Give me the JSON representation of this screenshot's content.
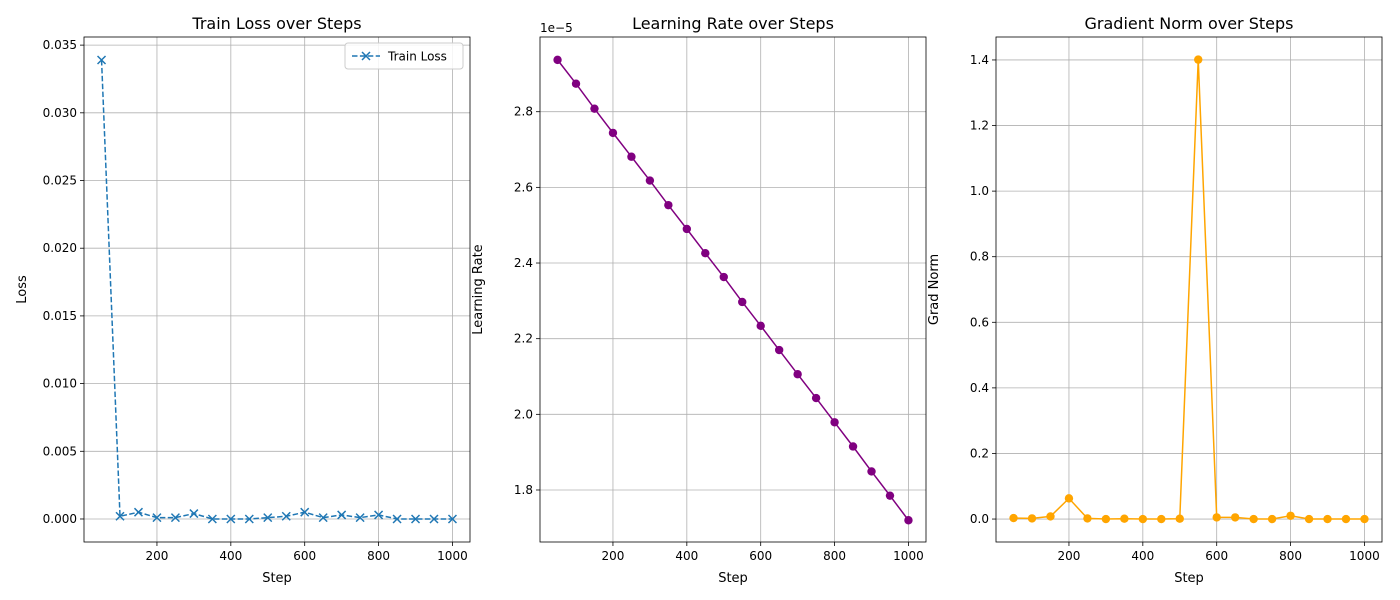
{
  "chart_data": [
    {
      "type": "line",
      "title": "Train Loss over Steps",
      "xlabel": "Step",
      "ylabel": "Loss",
      "xlim": [
        2.5,
        1047.5
      ],
      "ylim": [
        -0.0017,
        0.0356
      ],
      "x_ticks": [
        200,
        400,
        600,
        800,
        1000
      ],
      "y_ticks": [
        0.0,
        0.005,
        0.01,
        0.015,
        0.02,
        0.025,
        0.03,
        0.035
      ],
      "y_tick_labels": [
        "0.000",
        "0.005",
        "0.010",
        "0.015",
        "0.020",
        "0.025",
        "0.030",
        "0.035"
      ],
      "offset_text": "",
      "grid": true,
      "legend": {
        "position": "top-right",
        "entries": [
          "Train Loss"
        ]
      },
      "series": [
        {
          "name": "Train Loss",
          "color": "#1f77b4",
          "line_style": "dashed",
          "marker": "x",
          "x": [
            50,
            100,
            150,
            200,
            250,
            300,
            350,
            400,
            450,
            500,
            550,
            600,
            650,
            700,
            750,
            800,
            850,
            900,
            950,
            1000
          ],
          "y": [
            0.0339,
            0.0002,
            0.0005,
            0.0001,
            0.0001,
            0.0004,
            0.0,
            0.0,
            0.0,
            0.0001,
            0.0002,
            0.0005,
            0.0001,
            0.0003,
            0.0001,
            0.0003,
            0.0,
            0.0,
            0.0,
            0.0
          ]
        }
      ]
    },
    {
      "type": "line",
      "title": "Learning Rate over Steps",
      "xlabel": "Step",
      "ylabel": "Learning Rate",
      "xlim": [
        2.5,
        1047.5
      ],
      "ylim": [
        1.6625e-05,
        2.9975e-05
      ],
      "x_ticks": [
        200,
        400,
        600,
        800,
        1000
      ],
      "y_ticks": [
        1.8e-05,
        2e-05,
        2.2e-05,
        2.4e-05,
        2.6e-05,
        2.8e-05
      ],
      "y_tick_labels": [
        "1.8",
        "2.0",
        "2.2",
        "2.4",
        "2.6",
        "2.8"
      ],
      "offset_text": "1e−5",
      "grid": true,
      "series": [
        {
          "color": "#800080",
          "line_style": "solid",
          "marker": "o",
          "x": [
            50,
            100,
            150,
            200,
            250,
            300,
            350,
            400,
            450,
            500,
            550,
            600,
            650,
            700,
            750,
            800,
            850,
            900,
            950,
            1000
          ],
          "y": [
            2.937e-05,
            2.874e-05,
            2.808e-05,
            2.744e-05,
            2.681e-05,
            2.618e-05,
            2.553e-05,
            2.49e-05,
            2.426e-05,
            2.363e-05,
            2.297e-05,
            2.234e-05,
            2.17e-05,
            2.106e-05,
            2.043e-05,
            1.979e-05,
            1.915e-05,
            1.849e-05,
            1.785e-05,
            1.72e-05
          ]
        }
      ]
    },
    {
      "type": "line",
      "title": "Gradient Norm over Steps",
      "xlabel": "Step",
      "ylabel": "Grad Norm",
      "xlim": [
        2.5,
        1047.5
      ],
      "ylim": [
        -0.07,
        1.47
      ],
      "x_ticks": [
        200,
        400,
        600,
        800,
        1000
      ],
      "y_ticks": [
        0.0,
        0.2,
        0.4,
        0.6,
        0.8,
        1.0,
        1.2,
        1.4
      ],
      "y_tick_labels": [
        "0.0",
        "0.2",
        "0.4",
        "0.6",
        "0.8",
        "1.0",
        "1.2",
        "1.4"
      ],
      "offset_text": "",
      "grid": true,
      "series": [
        {
          "color": "#ffa500",
          "line_style": "solid",
          "marker": "o",
          "x": [
            50,
            100,
            150,
            200,
            250,
            300,
            350,
            400,
            450,
            500,
            550,
            600,
            650,
            700,
            750,
            800,
            850,
            900,
            950,
            1000
          ],
          "y": [
            0.003,
            0.002,
            0.008,
            0.063,
            0.002,
            0.0,
            0.001,
            0.0,
            0.0,
            0.001,
            1.401,
            0.005,
            0.005,
            0.0,
            0.0,
            0.01,
            0.0,
            0.0,
            0.0,
            0.0
          ]
        }
      ]
    }
  ]
}
